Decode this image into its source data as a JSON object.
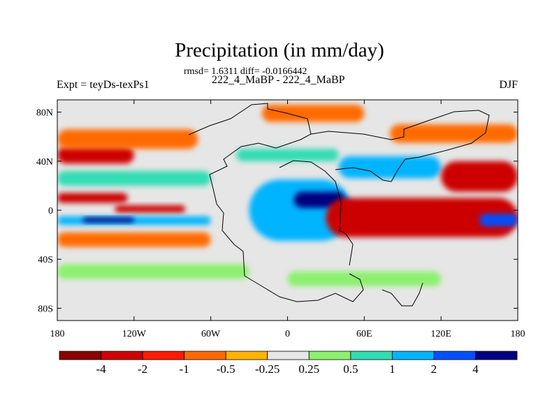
{
  "chart_data": {
    "type": "heatmap",
    "title": "Precipitation (in mm/day)",
    "stats_line": "rmsd= 1.6311 diff= -0.0166442",
    "subtitle": "222_4_MaBP - 222_4_MaBP",
    "left_label": "Expt = teyDs-texPs1",
    "right_label": "DJF",
    "xlim": [
      -180,
      180
    ],
    "ylim": [
      -90,
      90
    ],
    "x_ticks": [
      {
        "value": -180,
        "label": "180"
      },
      {
        "value": -120,
        "label": "120W"
      },
      {
        "value": -60,
        "label": "60W"
      },
      {
        "value": 0,
        "label": "0"
      },
      {
        "value": 60,
        "label": "60E"
      },
      {
        "value": 120,
        "label": "120E"
      },
      {
        "value": 180,
        "label": "180"
      }
    ],
    "y_ticks": [
      {
        "value": 80,
        "label": "80N"
      },
      {
        "value": 40,
        "label": "40N"
      },
      {
        "value": 0,
        "label": "0"
      },
      {
        "value": -40,
        "label": "40S"
      },
      {
        "value": -80,
        "label": "80S"
      }
    ],
    "colorbar": {
      "colors": [
        "#8b0000",
        "#cd0000",
        "#ff1a00",
        "#ff6a00",
        "#ffb400",
        "#e6e6e6",
        "#8cf06e",
        "#32dcb4",
        "#00b4ff",
        "#0050ff",
        "#000080"
      ],
      "labels": [
        "-4",
        "-2",
        "-1",
        "-0.5",
        "-0.25",
        "0.25",
        "0.5",
        "1",
        "2",
        "4"
      ]
    },
    "anomaly_regions": [
      {
        "name": "tropical Pacific dry band",
        "lon": [
          -180,
          -125
        ],
        "lat": [
          14,
          6
        ],
        "value": -3
      },
      {
        "name": "tropical Pacific dry core",
        "lon": [
          -135,
          -80
        ],
        "lat": [
          4,
          -2
        ],
        "value": -4
      },
      {
        "name": "equatorial Pacific wet band",
        "lon": [
          -180,
          -60
        ],
        "lat": [
          -5,
          -12
        ],
        "value": 1.5
      },
      {
        "name": "equatorial Pacific wet core",
        "lon": [
          -160,
          -120
        ],
        "lat": [
          -6,
          -10
        ],
        "value": 5
      },
      {
        "name": "south Pacific dry band",
        "lon": [
          -180,
          -60
        ],
        "lat": [
          -18,
          -30
        ],
        "value": -1
      },
      {
        "name": "north Pacific dry band",
        "lon": [
          -180,
          -120
        ],
        "lat": [
          52,
          38
        ],
        "value": -3
      },
      {
        "name": "north Pacific moderate band",
        "lon": [
          -180,
          -70
        ],
        "lat": [
          66,
          50
        ],
        "value": -0.7
      },
      {
        "name": "north Pacific wet band",
        "lon": [
          -180,
          -60
        ],
        "lat": [
          32,
          20
        ],
        "value": 0.7
      },
      {
        "name": "southern ocean wet band",
        "lon": [
          -180,
          -30
        ],
        "lat": [
          -44,
          -56
        ],
        "value": 0.4
      },
      {
        "name": "Atlantic Africa wet region",
        "lon": [
          -30,
          50
        ],
        "lat": [
          25,
          -25
        ],
        "value": 1.5
      },
      {
        "name": "equatorial Africa wet core",
        "lon": [
          5,
          45
        ],
        "lat": [
          15,
          2
        ],
        "value": 5
      },
      {
        "name": "Atlantic Europe wet band",
        "lon": [
          -40,
          40
        ],
        "lat": [
          50,
          40
        ],
        "value": 0.7
      },
      {
        "name": "Arctic dry band",
        "lon": [
          -20,
          60
        ],
        "lat": [
          86,
          72
        ],
        "value": -0.7
      },
      {
        "name": "Asia wet band",
        "lon": [
          40,
          120
        ],
        "lat": [
          44,
          26
        ],
        "value": 1.5
      },
      {
        "name": "Indian Ocean dry region",
        "lon": [
          30,
          180
        ],
        "lat": [
          10,
          -22
        ],
        "value": -3
      },
      {
        "name": "Indian Ocean dry core",
        "lon": [
          50,
          140
        ],
        "lat": [
          2,
          -14
        ],
        "value": -4
      },
      {
        "name": "south Pacific west wet core",
        "lon": [
          150,
          180
        ],
        "lat": [
          -3,
          -13
        ],
        "value": 2
      },
      {
        "name": "north west Pacific dry band",
        "lon": [
          120,
          180
        ],
        "lat": [
          40,
          15
        ],
        "value": -3
      },
      {
        "name": "Siberia dry band",
        "lon": [
          80,
          180
        ],
        "lat": [
          70,
          55
        ],
        "value": -0.7
      },
      {
        "name": "southern Indian Ocean wet band",
        "lon": [
          0,
          120
        ],
        "lat": [
          -50,
          -62
        ],
        "value": 0.4
      }
    ]
  }
}
